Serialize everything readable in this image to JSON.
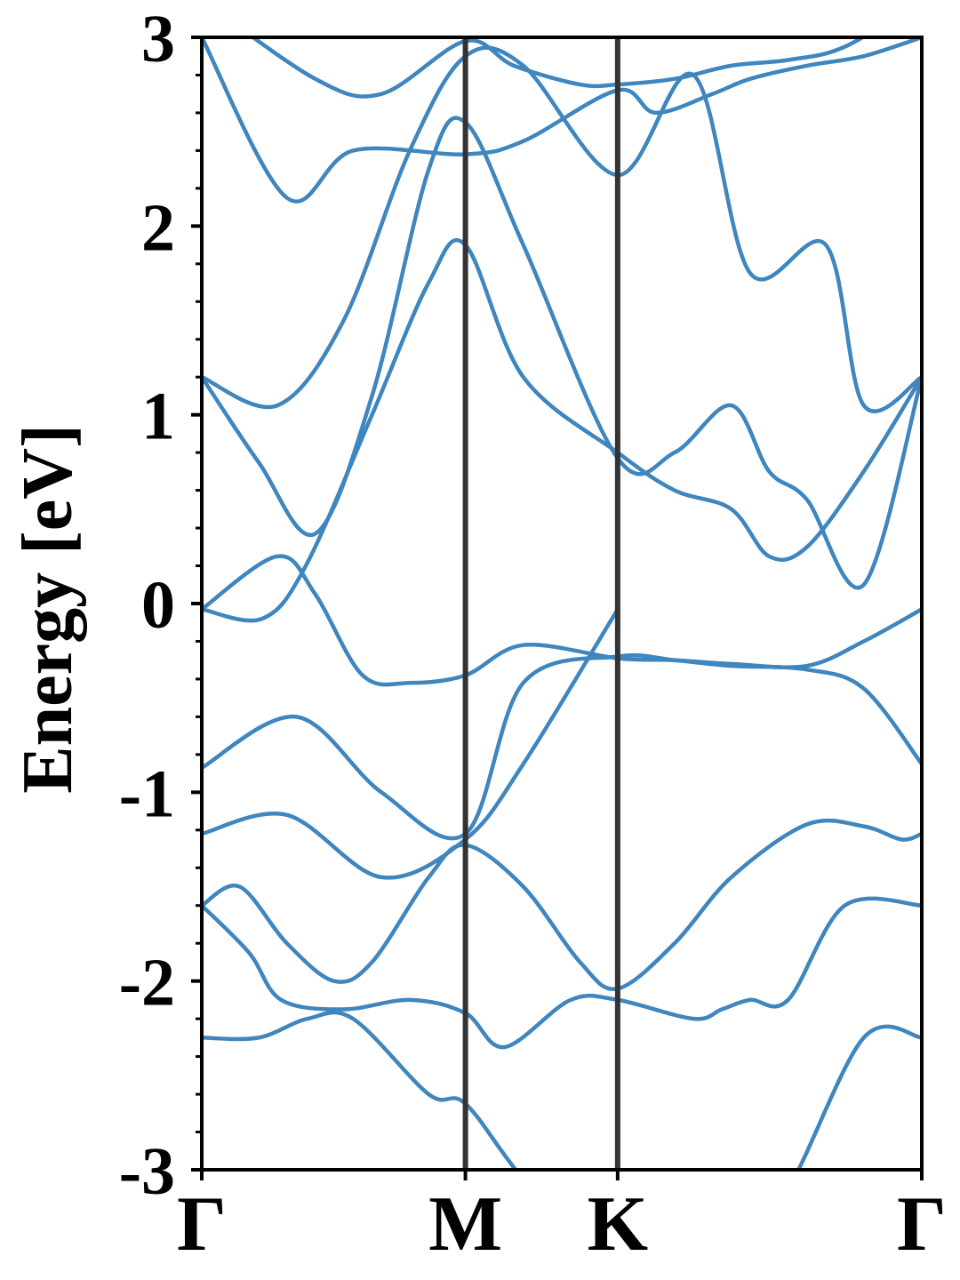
{
  "chart_data": {
    "type": "line",
    "ylabel": "Energy [eV]",
    "xlabel": "",
    "ylim": [
      -3,
      3
    ],
    "yticks": [
      -3,
      -2,
      -1,
      0,
      1,
      2,
      3
    ],
    "ytick_labels": [
      "-3",
      "-2",
      "-1",
      "0",
      "1",
      "2",
      "3"
    ],
    "yminor_step": 0.2,
    "xlim": [
      0,
      3.807
    ],
    "kpath": [
      {
        "label": "Γ",
        "x": 0.0
      },
      {
        "label": "M",
        "x": 1.394
      },
      {
        "label": "K",
        "x": 2.199
      },
      {
        "label": "Γ",
        "x": 3.807
      }
    ],
    "grid": false,
    "colors": {
      "bands": "#3f86bf",
      "kpoint_lines": "#333333",
      "axes": "#000000"
    },
    "series": [
      {
        "x": [
          0,
          0.3,
          0.56,
          0.8,
          1.2,
          1.394,
          1.7,
          2.199,
          2.5,
          2.85,
          3.1,
          3.5,
          3.807
        ],
        "values": [
          -2.3,
          -2.3,
          -2.2,
          -2.2,
          -2.6,
          -2.65,
          -3.05,
          -3.6,
          -3.6,
          -3.3,
          -3.1,
          -2.3,
          -2.3
        ]
      },
      {
        "x": [
          0,
          0.25,
          0.42,
          0.75,
          1.1,
          1.394,
          1.6,
          1.95,
          2.199,
          2.6,
          2.75,
          2.9,
          3.1,
          3.4,
          3.807
        ],
        "values": [
          -1.6,
          -1.85,
          -2.1,
          -2.15,
          -2.1,
          -2.17,
          -2.35,
          -2.1,
          -2.1,
          -2.2,
          -2.15,
          -2.1,
          -2.1,
          -1.6,
          -1.6
        ]
      },
      {
        "x": [
          0,
          0.2,
          0.45,
          0.7,
          0.9,
          1.2,
          1.394,
          1.7,
          2.0,
          2.199,
          2.5,
          2.8,
          3.2,
          3.5,
          3.7,
          3.807
        ],
        "values": [
          -1.6,
          -1.5,
          -1.8,
          -2.0,
          -1.9,
          -1.45,
          -1.28,
          -1.5,
          -1.9,
          -2.04,
          -1.8,
          -1.45,
          -1.17,
          -1.18,
          -1.25,
          -1.22
        ]
      },
      {
        "x": [
          0,
          0.45,
          0.95,
          1.394,
          1.7,
          2.199
        ],
        "values": [
          -1.22,
          -1.12,
          -1.45,
          -1.25,
          -0.85,
          -0.03
        ]
      },
      {
        "x": [
          0,
          0.5,
          0.95,
          1.394,
          1.7,
          2.199,
          2.5,
          2.8,
          3.2,
          3.5,
          3.807
        ],
        "values": [
          -0.87,
          -0.6,
          -1.0,
          -1.22,
          -0.42,
          -0.28,
          -0.3,
          -0.33,
          -0.35,
          -0.45,
          -0.85
        ]
      },
      {
        "x": [
          0,
          0.4,
          0.6,
          0.85,
          1.1,
          1.394,
          1.7,
          2.199,
          2.5,
          2.8,
          3.2,
          3.5,
          3.807
        ],
        "values": [
          -0.03,
          0.25,
          0.05,
          -0.38,
          -0.42,
          -0.38,
          -0.22,
          -0.29,
          -0.3,
          -0.32,
          -0.33,
          -0.2,
          -0.03
        ]
      },
      {
        "x": [
          0,
          0.32,
          0.55,
          0.9,
          1.2,
          1.394,
          1.7,
          2.199,
          2.5,
          2.8,
          3.0,
          3.2,
          3.5,
          3.807
        ],
        "values": [
          -0.03,
          -0.08,
          0.2,
          1.0,
          1.7,
          1.9,
          1.2,
          0.8,
          0.6,
          0.5,
          0.25,
          0.3,
          0.7,
          1.2
        ]
      },
      {
        "x": [
          0,
          0.3,
          0.6,
          0.9,
          1.2,
          1.394,
          1.7,
          2.199,
          2.5,
          2.8,
          3.0,
          3.2,
          3.5,
          3.807
        ],
        "values": [
          1.2,
          0.75,
          0.37,
          1.1,
          2.3,
          2.55,
          1.9,
          0.77,
          0.8,
          1.05,
          0.7,
          0.55,
          0.1,
          1.2
        ]
      },
      {
        "x": [
          0,
          0.4,
          0.75,
          1.1,
          1.394,
          1.7,
          2.199,
          2.6,
          2.9,
          3.3,
          3.5,
          3.807
        ],
        "values": [
          1.2,
          1.05,
          1.5,
          2.4,
          2.9,
          2.85,
          2.27,
          2.8,
          1.75,
          1.9,
          1.05,
          1.2
        ]
      },
      {
        "x": [
          0,
          0.45,
          0.8,
          1.394,
          1.7,
          2.199,
          2.4,
          2.7,
          2.9,
          3.2,
          3.5,
          3.807
        ],
        "values": [
          3.0,
          2.15,
          2.4,
          2.38,
          2.45,
          2.72,
          2.6,
          2.7,
          2.78,
          2.85,
          2.9,
          3.0
        ]
      },
      {
        "x": [
          0,
          0.6,
          0.95,
          1.394,
          1.65,
          2.0,
          2.199,
          2.5,
          2.8,
          3.1,
          3.4,
          3.807
        ],
        "values": [
          3.2,
          2.78,
          2.7,
          2.98,
          2.85,
          2.75,
          2.75,
          2.78,
          2.85,
          2.88,
          2.95,
          3.2
        ]
      }
    ]
  }
}
